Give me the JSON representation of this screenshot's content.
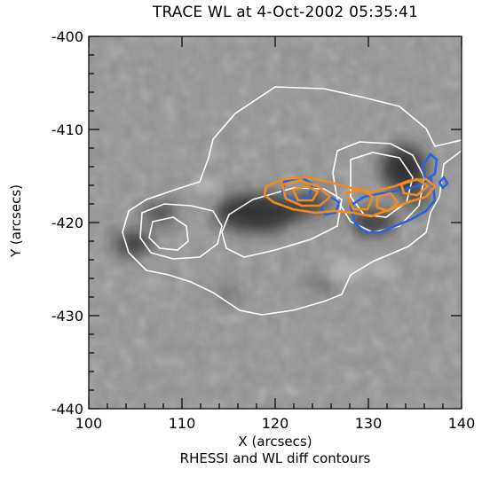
{
  "title": "TRACE WL at 4-Oct-2002 05:35:41",
  "xlabel": "X (arcsecs)",
  "ylabel": "Y (arcsecs)",
  "subcaption": "RHESSI and WL diff contours",
  "x_ticks": [
    "100",
    "110",
    "120",
    "130",
    "140"
  ],
  "y_ticks": [
    "-400",
    "-410",
    "-420",
    "-430",
    "-440"
  ],
  "colors": {
    "background_gray": "#8f8f8f",
    "wl_contour": "#ffffff",
    "rhessi_contour_orange": "#f28a1e",
    "rhessi_contour_blue": "#2a63e0"
  }
}
